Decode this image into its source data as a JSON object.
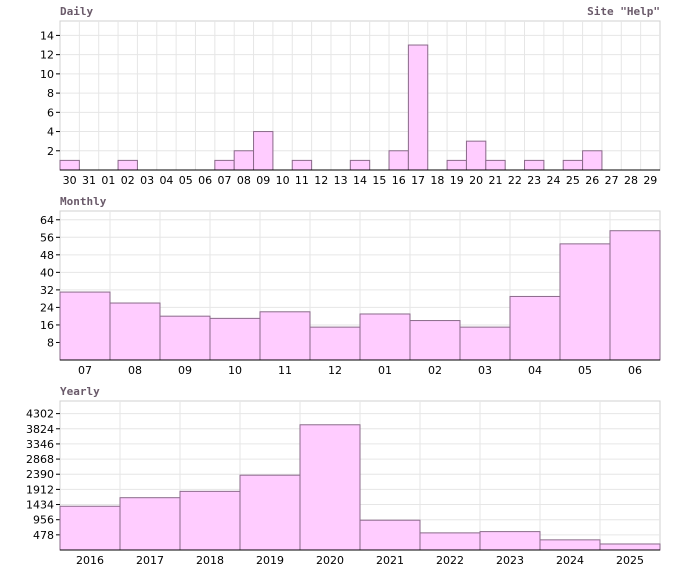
{
  "colors": {
    "bar_fill": "#ffccff",
    "bar_stroke": "#8a6a8a",
    "grid": "#e6e6e6",
    "title": "#6a5a6a"
  },
  "chart_data": [
    {
      "id": "daily",
      "type": "bar",
      "title": "Daily",
      "title_right": "Site \"Help\"",
      "categories": [
        "30",
        "31",
        "01",
        "02",
        "03",
        "04",
        "05",
        "06",
        "07",
        "08",
        "09",
        "10",
        "11",
        "12",
        "13",
        "14",
        "15",
        "16",
        "17",
        "18",
        "19",
        "20",
        "21",
        "22",
        "23",
        "24",
        "25",
        "26",
        "27",
        "28",
        "29"
      ],
      "values": [
        1,
        0,
        0,
        1,
        0,
        0,
        0,
        0,
        1,
        2,
        4,
        0,
        1,
        0,
        0,
        1,
        0,
        2,
        13,
        0,
        1,
        3,
        1,
        0,
        1,
        0,
        1,
        2,
        0,
        0,
        0
      ],
      "yticks": [
        "2",
        "4",
        "6",
        "8",
        "10",
        "12",
        "14"
      ],
      "ylim": [
        0,
        15.5
      ],
      "grid": true
    },
    {
      "id": "monthly",
      "type": "bar",
      "title": "Monthly",
      "categories": [
        "07",
        "08",
        "09",
        "10",
        "11",
        "12",
        "01",
        "02",
        "03",
        "04",
        "05",
        "06"
      ],
      "values": [
        31,
        26,
        20,
        19,
        22,
        15,
        21,
        18,
        15,
        29,
        53,
        59
      ],
      "yticks": [
        "8",
        "16",
        "24",
        "32",
        "40",
        "48",
        "56",
        "64"
      ],
      "ylim": [
        0,
        68
      ],
      "grid": true
    },
    {
      "id": "yearly",
      "type": "bar",
      "title": "Yearly",
      "categories": [
        "2016",
        "2017",
        "2018",
        "2019",
        "2020",
        "2021",
        "2022",
        "2023",
        "2024",
        "2025"
      ],
      "values": [
        1380,
        1650,
        1850,
        2360,
        3950,
        940,
        540,
        580,
        320,
        190
      ],
      "yticks": [
        "478",
        "956",
        "1434",
        "1912",
        "2390",
        "2868",
        "3346",
        "3824",
        "4302"
      ],
      "ylim": [
        0,
        4700
      ],
      "grid": true
    }
  ]
}
